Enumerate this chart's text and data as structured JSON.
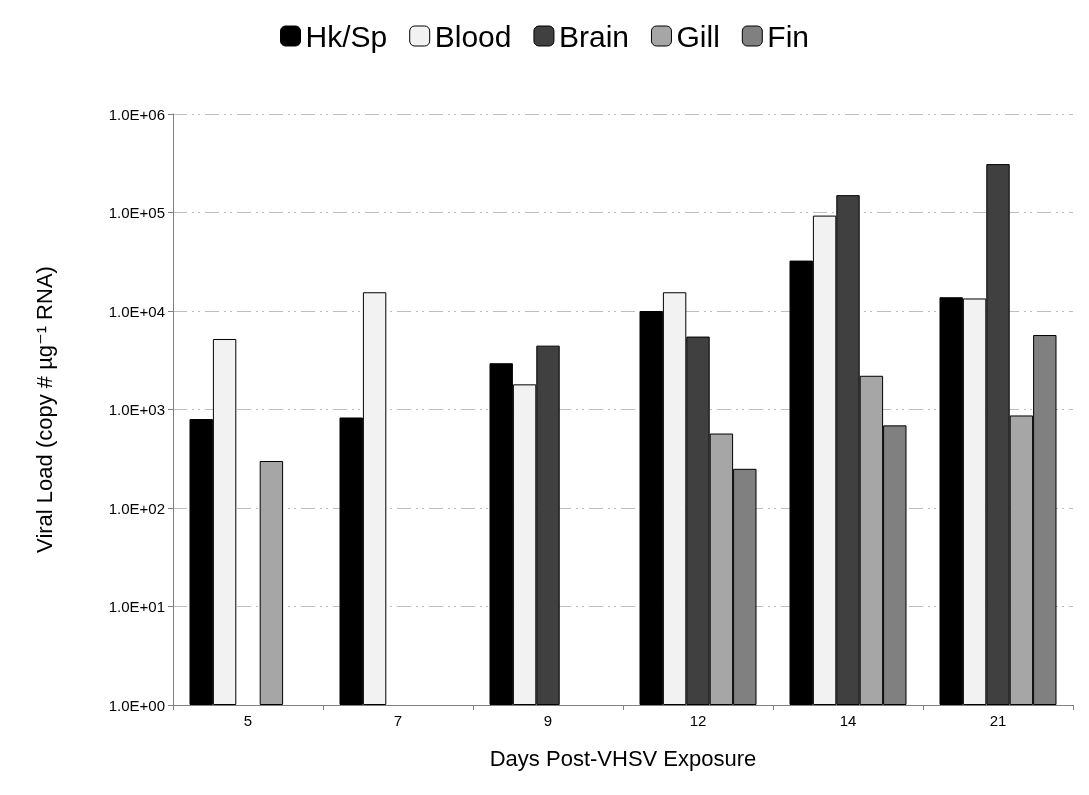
{
  "chart_data": {
    "type": "bar",
    "xlabel": "Days Post-VHSV Exposure",
    "ylabel": "Viral Load (copy # µg⁻¹ RNA)",
    "categories": [
      "5",
      "7",
      "9",
      "12",
      "14",
      "21"
    ],
    "series": [
      {
        "name": "Hk/Sp",
        "color": "#000000",
        "values": [
          800,
          830,
          2950,
          10000,
          32500,
          13800
        ]
      },
      {
        "name": "Blood",
        "color": "#f2f2f2",
        "values": [
          5200,
          15500,
          1800,
          15500,
          93000,
          13400
        ]
      },
      {
        "name": "Brain",
        "color": "#404040",
        "values": [
          null,
          null,
          4450,
          5500,
          150000,
          310000
        ]
      },
      {
        "name": "Gill",
        "color": "#a6a6a6",
        "values": [
          300,
          null,
          null,
          570,
          2200,
          870
        ]
      },
      {
        "name": "Fin",
        "color": "#808080",
        "values": [
          null,
          null,
          null,
          250,
          690,
          5700
        ]
      }
    ],
    "log": "y",
    "ylim": [
      1,
      1000000
    ],
    "yticks": [
      {
        "value": 1,
        "label": "1.0E+00"
      },
      {
        "value": 10,
        "label": "1.0E+01"
      },
      {
        "value": 100,
        "label": "1.0E+02"
      },
      {
        "value": 1000,
        "label": "1.0E+03"
      },
      {
        "value": 10000,
        "label": "1.0E+04"
      },
      {
        "value": 100000,
        "label": "1.0E+05"
      },
      {
        "value": 1000000,
        "label": "1.0E+06"
      }
    ],
    "grid": "y",
    "legend": "top"
  }
}
